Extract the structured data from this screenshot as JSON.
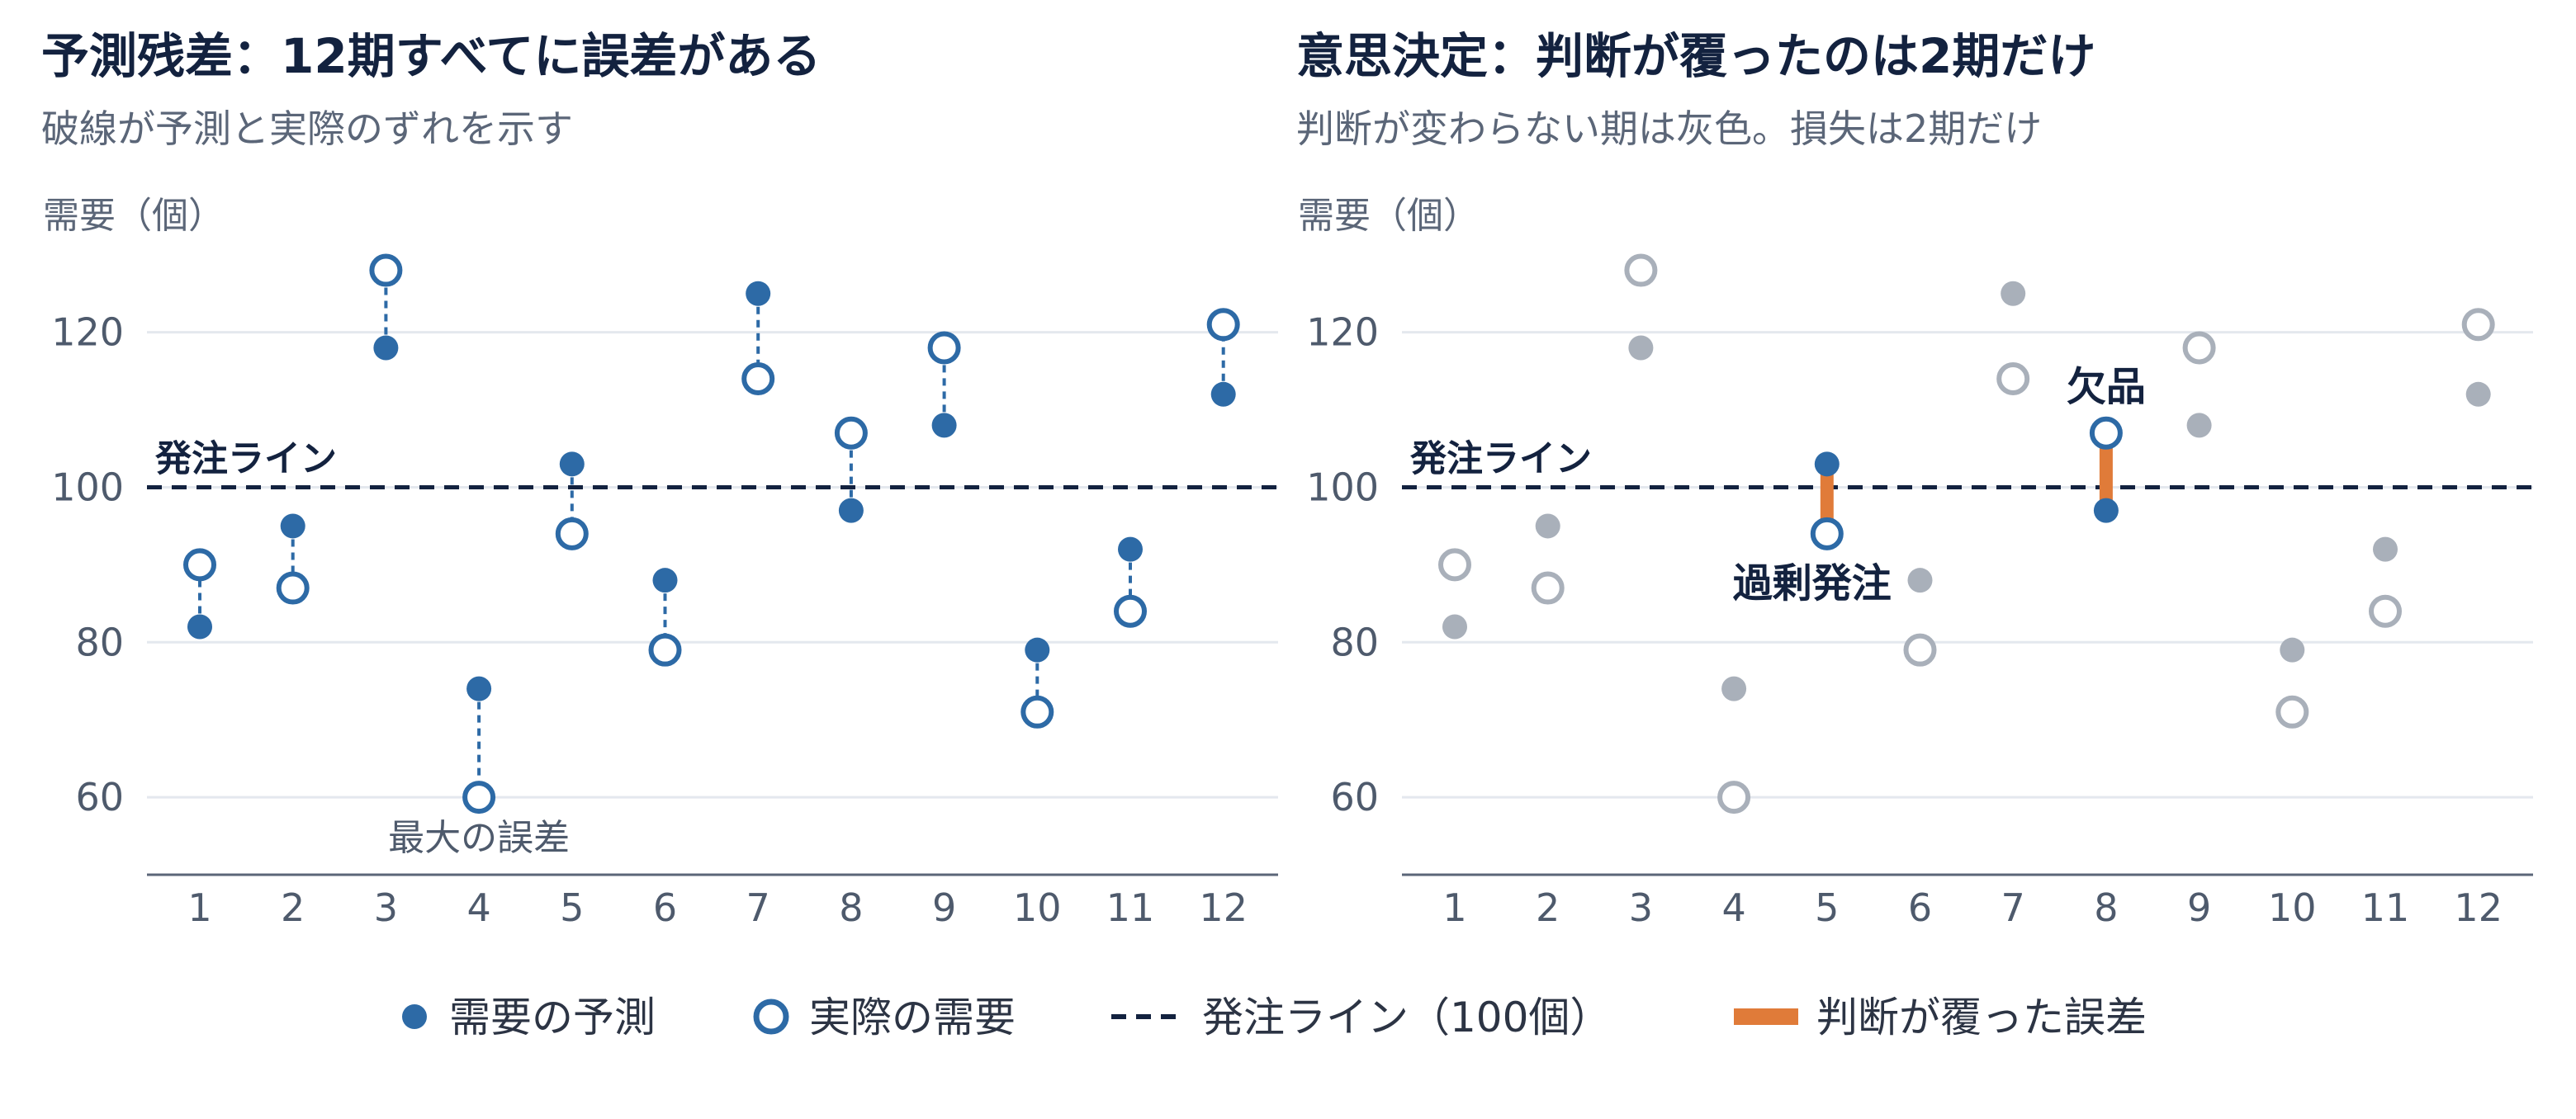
{
  "chart_data": [
    {
      "type": "scatter",
      "title": "予測残差：12期すべてに誤差がある",
      "subtitle": "破線が予測と実際のずれを示す",
      "ylabel": "需要（個）",
      "xlabel": "",
      "categories": [
        "1",
        "2",
        "3",
        "4",
        "5",
        "6",
        "7",
        "8",
        "9",
        "10",
        "11",
        "12"
      ],
      "ylim": [
        50,
        132
      ],
      "yticks": [
        60,
        80,
        100,
        120
      ],
      "grid": true,
      "series": [
        {
          "name": "需要の予測",
          "values": [
            82,
            95,
            118,
            74,
            103,
            88,
            125,
            97,
            108,
            79,
            92,
            112
          ]
        },
        {
          "name": "実際の需要",
          "values": [
            90,
            87,
            128,
            60,
            94,
            79,
            114,
            107,
            118,
            71,
            84,
            121
          ]
        }
      ],
      "reference_line": {
        "value": 100,
        "label": "発注ライン"
      },
      "annotations": [
        {
          "text": "最大の誤差",
          "period": "4"
        }
      ]
    },
    {
      "type": "scatter",
      "title": "意思決定：判断が覆ったのは2期だけ",
      "subtitle": "判断が変わらない期は灰色。損失は2期だけ",
      "ylabel": "需要（個）",
      "xlabel": "",
      "categories": [
        "1",
        "2",
        "3",
        "4",
        "5",
        "6",
        "7",
        "8",
        "9",
        "10",
        "11",
        "12"
      ],
      "ylim": [
        50,
        132
      ],
      "yticks": [
        60,
        80,
        100,
        120
      ],
      "grid": true,
      "series": [
        {
          "name": "需要の予測",
          "values": [
            82,
            95,
            118,
            74,
            103,
            88,
            125,
            97,
            108,
            79,
            92,
            112
          ]
        },
        {
          "name": "実際の需要",
          "values": [
            90,
            87,
            128,
            60,
            94,
            79,
            114,
            107,
            118,
            71,
            84,
            121
          ]
        }
      ],
      "reference_line": {
        "value": 100,
        "label": "発注ライン"
      },
      "highlighted_periods": [
        "5",
        "8"
      ],
      "annotations": [
        {
          "text": "過剰発注",
          "period": "5"
        },
        {
          "text": "欠品",
          "period": "8"
        }
      ]
    }
  ],
  "legend": {
    "position": "bottom",
    "items": [
      {
        "label": "需要の予測",
        "kind": "filled-dot"
      },
      {
        "label": "実際の需要",
        "kind": "hollow-dot"
      },
      {
        "label": "発注ライン（100個）",
        "kind": "dashed-line"
      },
      {
        "label": "判断が覆った誤差",
        "kind": "orange-bar"
      }
    ]
  },
  "colors": {
    "primary": "#2d6aa6",
    "muted": "#a9b0ba",
    "reference": "#13223f",
    "highlight": "#e07b39",
    "grid": "#e4e8ee",
    "axis": "#5b6678"
  }
}
